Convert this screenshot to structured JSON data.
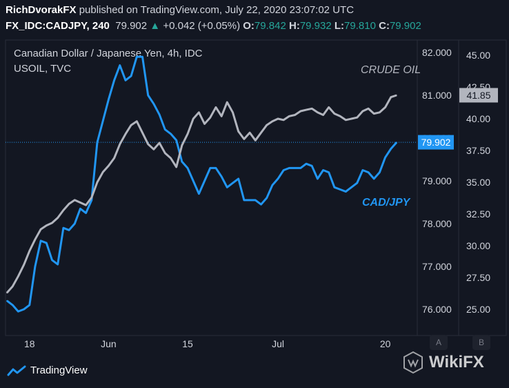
{
  "header": {
    "author": "RichDvorakFX",
    "published_text": " published on TradingView.com, July 22, 2020 23:07:02 UTC",
    "symbol": "FX_IDC:CADJPY, 240",
    "price": "79.902",
    "change": "+0.042 (+0.05%)",
    "o_label": "O:",
    "o_value": "79.842",
    "h_label": "H:",
    "h_value": "79.932",
    "l_label": "L:",
    "l_value": "79.810",
    "c_label": "C:",
    "c_value": "79.902"
  },
  "legend": {
    "title": "Canadian Dollar / Japanese Yen, 4h, IDC",
    "overlay": "USOIL, TVC"
  },
  "annotations": {
    "crude": "CRUDE OIL",
    "cadjpy": "CAD/JPY"
  },
  "badges": {
    "cad_last": "79.902",
    "oil_last": "41.85",
    "scale_a": "A",
    "scale_b": "B"
  },
  "footer": {
    "brand": "TradingView"
  },
  "watermark": {
    "text": "WikiFX"
  },
  "colors": {
    "cadjpy": "#2196f3",
    "crude": "#b2b5be",
    "background": "#131722",
    "up": "#26a69a"
  },
  "chart_data": {
    "type": "line",
    "x_ticks": [
      "18",
      "Jun",
      "15",
      "Jul",
      "20"
    ],
    "axis_left_ticks": [
      "82.000",
      "81.000",
      "80.000",
      "79.000",
      "78.000",
      "77.000",
      "76.000"
    ],
    "axis_right_ticks": [
      "45.00",
      "42.50",
      "40.00",
      "37.50",
      "35.00",
      "32.50",
      "30.00",
      "27.50",
      "25.00"
    ],
    "ylim_cadjpy": [
      75.8,
      82.2
    ],
    "ylim_crude": [
      23.8,
      45.6
    ],
    "legend": "none",
    "grid": false,
    "series": [
      {
        "name": "CAD/JPY",
        "axis": "left",
        "color": "#2196f3",
        "x": [
          "2020-05-14",
          "2020-05-15",
          "2020-05-16",
          "2020-05-17",
          "2020-05-18",
          "2020-05-19",
          "2020-05-20",
          "2020-05-21",
          "2020-05-22",
          "2020-05-23",
          "2020-05-24",
          "2020-05-25",
          "2020-05-26",
          "2020-05-27",
          "2020-05-28",
          "2020-05-29",
          "2020-05-30",
          "2020-05-31",
          "2020-06-01",
          "2020-06-02",
          "2020-06-03",
          "2020-06-04",
          "2020-06-05",
          "2020-06-06",
          "2020-06-07",
          "2020-06-08",
          "2020-06-09",
          "2020-06-10",
          "2020-06-11",
          "2020-06-12",
          "2020-06-13",
          "2020-06-14",
          "2020-06-15",
          "2020-06-16",
          "2020-06-17",
          "2020-06-18",
          "2020-06-19",
          "2020-06-20",
          "2020-06-21",
          "2020-06-22",
          "2020-06-23",
          "2020-06-24",
          "2020-06-25",
          "2020-06-26",
          "2020-06-27",
          "2020-06-28",
          "2020-06-29",
          "2020-06-30",
          "2020-07-01",
          "2020-07-02",
          "2020-07-03",
          "2020-07-04",
          "2020-07-05",
          "2020-07-06",
          "2020-07-07",
          "2020-07-08",
          "2020-07-09",
          "2020-07-10",
          "2020-07-11",
          "2020-07-12",
          "2020-07-13",
          "2020-07-14",
          "2020-07-15",
          "2020-07-16",
          "2020-07-17",
          "2020-07-18",
          "2020-07-19",
          "2020-07-20",
          "2020-07-21",
          "2020-07-22"
        ],
        "values": [
          76.2,
          76.1,
          75.95,
          76.0,
          76.1,
          77.0,
          77.6,
          77.55,
          77.15,
          77.05,
          77.9,
          77.85,
          78.0,
          78.35,
          78.25,
          78.55,
          79.9,
          80.4,
          80.9,
          81.35,
          81.7,
          81.35,
          81.45,
          81.9,
          81.9,
          81.0,
          80.8,
          80.55,
          80.2,
          80.1,
          79.95,
          79.45,
          79.3,
          79.0,
          78.7,
          79.0,
          79.3,
          79.3,
          79.1,
          78.85,
          78.95,
          79.05,
          78.55,
          78.55,
          78.55,
          78.45,
          78.6,
          78.9,
          79.05,
          79.25,
          79.3,
          79.3,
          79.3,
          79.4,
          79.35,
          79.05,
          79.25,
          79.2,
          78.85,
          78.8,
          78.75,
          78.85,
          78.95,
          79.25,
          79.2,
          79.05,
          79.2,
          79.55,
          79.75,
          79.9
        ]
      },
      {
        "name": "CRUDE OIL",
        "axis": "right",
        "color": "#b2b5be",
        "x": [
          "2020-05-14",
          "2020-05-15",
          "2020-05-16",
          "2020-05-17",
          "2020-05-18",
          "2020-05-19",
          "2020-05-20",
          "2020-05-21",
          "2020-05-22",
          "2020-05-23",
          "2020-05-24",
          "2020-05-25",
          "2020-05-26",
          "2020-05-27",
          "2020-05-28",
          "2020-05-29",
          "2020-05-30",
          "2020-05-31",
          "2020-06-01",
          "2020-06-02",
          "2020-06-03",
          "2020-06-04",
          "2020-06-05",
          "2020-06-06",
          "2020-06-07",
          "2020-06-08",
          "2020-06-09",
          "2020-06-10",
          "2020-06-11",
          "2020-06-12",
          "2020-06-13",
          "2020-06-14",
          "2020-06-15",
          "2020-06-16",
          "2020-06-17",
          "2020-06-18",
          "2020-06-19",
          "2020-06-20",
          "2020-06-21",
          "2020-06-22",
          "2020-06-23",
          "2020-06-24",
          "2020-06-25",
          "2020-06-26",
          "2020-06-27",
          "2020-06-28",
          "2020-06-29",
          "2020-06-30",
          "2020-07-01",
          "2020-07-02",
          "2020-07-03",
          "2020-07-04",
          "2020-07-05",
          "2020-07-06",
          "2020-07-07",
          "2020-07-08",
          "2020-07-09",
          "2020-07-10",
          "2020-07-11",
          "2020-07-12",
          "2020-07-13",
          "2020-07-14",
          "2020-07-15",
          "2020-07-16",
          "2020-07-17",
          "2020-07-18",
          "2020-07-19",
          "2020-07-20",
          "2020-07-21",
          "2020-07-22"
        ],
        "values": [
          26.3,
          26.8,
          27.6,
          28.5,
          29.6,
          30.5,
          31.3,
          31.6,
          31.8,
          32.2,
          32.8,
          33.3,
          33.6,
          33.4,
          33.2,
          33.8,
          35.0,
          35.8,
          36.3,
          36.9,
          38.0,
          38.8,
          39.5,
          39.8,
          38.9,
          38.0,
          37.6,
          38.1,
          37.3,
          36.9,
          36.2,
          37.9,
          38.8,
          40.0,
          40.5,
          39.6,
          40.1,
          40.9,
          40.2,
          41.3,
          40.5,
          39.0,
          38.4,
          38.9,
          38.3,
          38.9,
          39.5,
          39.8,
          40.0,
          39.9,
          40.2,
          40.3,
          40.6,
          40.7,
          40.8,
          40.5,
          40.3,
          40.9,
          40.4,
          40.2,
          39.9,
          40.0,
          40.1,
          40.6,
          40.8,
          40.4,
          40.5,
          40.9,
          41.7,
          41.85
        ]
      }
    ]
  }
}
